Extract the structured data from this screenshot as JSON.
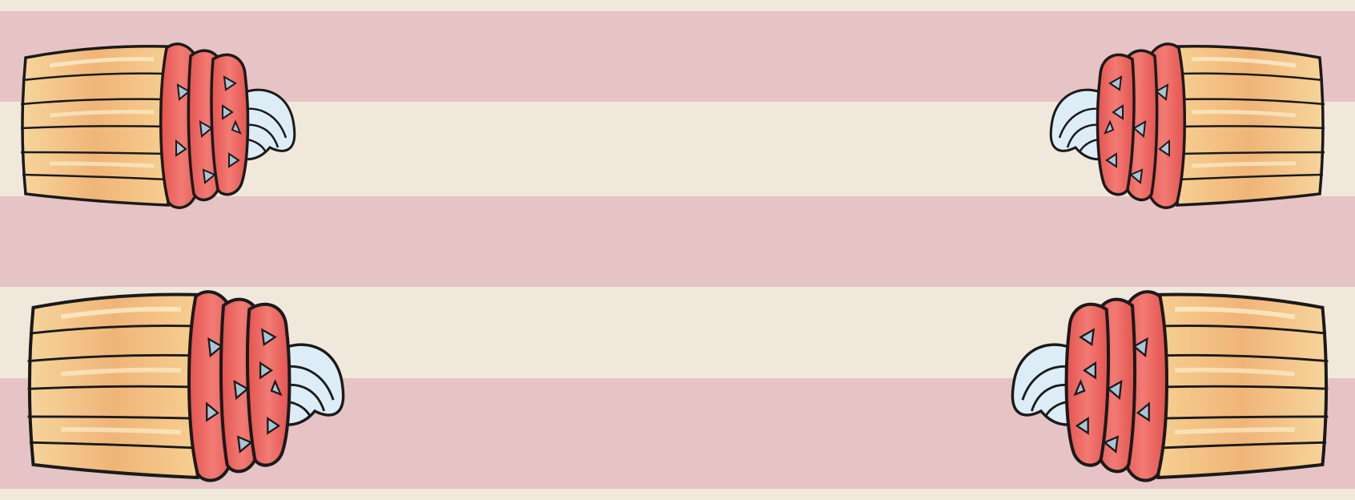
{
  "colors": {
    "cream": "#f1e8dc",
    "pink": "#e6c3c4",
    "wrapper_light": "#f8e2a6",
    "wrapper_mid": "#f2bd82",
    "wrapper_dark": "#e89a5c",
    "cake_red": "#e95d58",
    "cake_red_light": "#f48b84",
    "frosting": "#d9ecf6",
    "sprinkle": "#a9c4d6",
    "outline": "#1a1a1a"
  },
  "stripes": [
    "cream",
    "pink",
    "cream",
    "pink",
    "cream",
    "pink",
    "cream"
  ],
  "cupcakes": [
    {
      "name": "cupcake-top-left",
      "facing": "right"
    },
    {
      "name": "cupcake-top-right",
      "facing": "left"
    },
    {
      "name": "cupcake-bottom-left",
      "facing": "right"
    },
    {
      "name": "cupcake-bottom-right",
      "facing": "left"
    }
  ]
}
